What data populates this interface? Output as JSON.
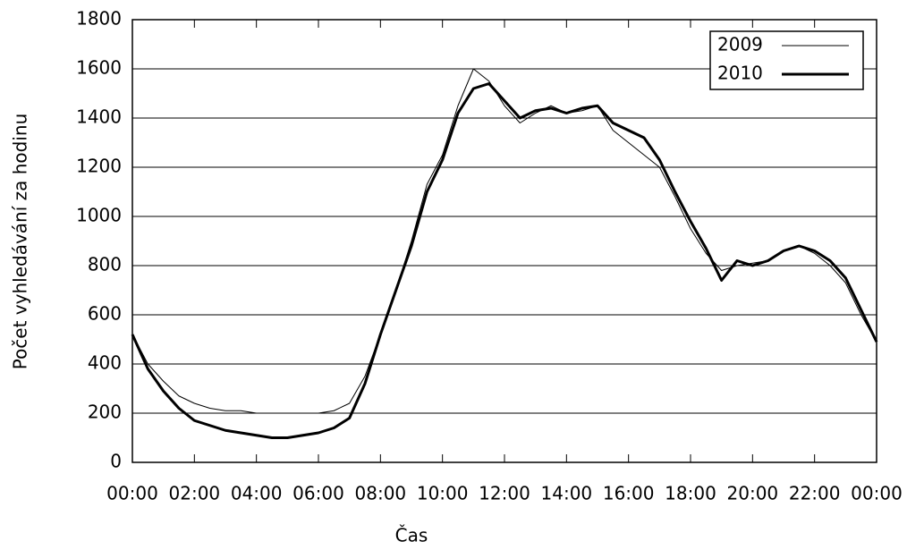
{
  "chart_data": {
    "type": "line",
    "xlabel": "Čas",
    "ylabel": "Počet vyhledávání za hodinu",
    "x": [
      0,
      0.5,
      1,
      1.5,
      2,
      2.5,
      3,
      3.5,
      4,
      4.5,
      5,
      5.5,
      6,
      6.5,
      7,
      7.5,
      8,
      8.5,
      9,
      9.5,
      10,
      10.5,
      11,
      11.5,
      12,
      12.5,
      13,
      13.5,
      14,
      14.5,
      15,
      15.5,
      16,
      16.5,
      17,
      17.5,
      18,
      18.5,
      19,
      19.5,
      20,
      20.5,
      21,
      21.5,
      22,
      22.5,
      23,
      23.5,
      24
    ],
    "series": [
      {
        "name": "2009",
        "color": "#000000",
        "width": 1,
        "values": [
          520,
          400,
          330,
          270,
          240,
          220,
          210,
          210,
          200,
          200,
          200,
          200,
          200,
          210,
          240,
          350,
          520,
          700,
          900,
          1130,
          1250,
          1450,
          1600,
          1550,
          1450,
          1380,
          1420,
          1450,
          1420,
          1430,
          1450,
          1350,
          1300,
          1250,
          1200,
          1080,
          950,
          850,
          780,
          800,
          810,
          820,
          860,
          880,
          850,
          800,
          730,
          600,
          490
        ]
      },
      {
        "name": "2010",
        "color": "#000000",
        "width": 3,
        "values": [
          520,
          380,
          290,
          220,
          170,
          150,
          130,
          120,
          110,
          100,
          100,
          110,
          120,
          140,
          180,
          320,
          520,
          700,
          880,
          1100,
          1230,
          1420,
          1520,
          1540,
          1470,
          1400,
          1430,
          1440,
          1420,
          1440,
          1450,
          1380,
          1350,
          1320,
          1230,
          1100,
          980,
          870,
          740,
          820,
          800,
          820,
          860,
          880,
          860,
          820,
          750,
          620,
          490
        ]
      }
    ],
    "xlim": [
      0,
      24
    ],
    "xticks": [
      {
        "value": 0,
        "label": "00:00"
      },
      {
        "value": 2,
        "label": "02:00"
      },
      {
        "value": 4,
        "label": "04:00"
      },
      {
        "value": 6,
        "label": "06:00"
      },
      {
        "value": 8,
        "label": "08:00"
      },
      {
        "value": 10,
        "label": "10:00"
      },
      {
        "value": 12,
        "label": "12:00"
      },
      {
        "value": 14,
        "label": "14:00"
      },
      {
        "value": 16,
        "label": "16:00"
      },
      {
        "value": 18,
        "label": "18:00"
      },
      {
        "value": 20,
        "label": "20:00"
      },
      {
        "value": 22,
        "label": "22:00"
      },
      {
        "value": 24,
        "label": "00:00"
      }
    ],
    "ylim": [
      0,
      1800
    ],
    "yticks": [
      0,
      200,
      400,
      600,
      800,
      1000,
      1200,
      1400,
      1600,
      1800
    ],
    "grid": true,
    "legend": "top-right"
  }
}
